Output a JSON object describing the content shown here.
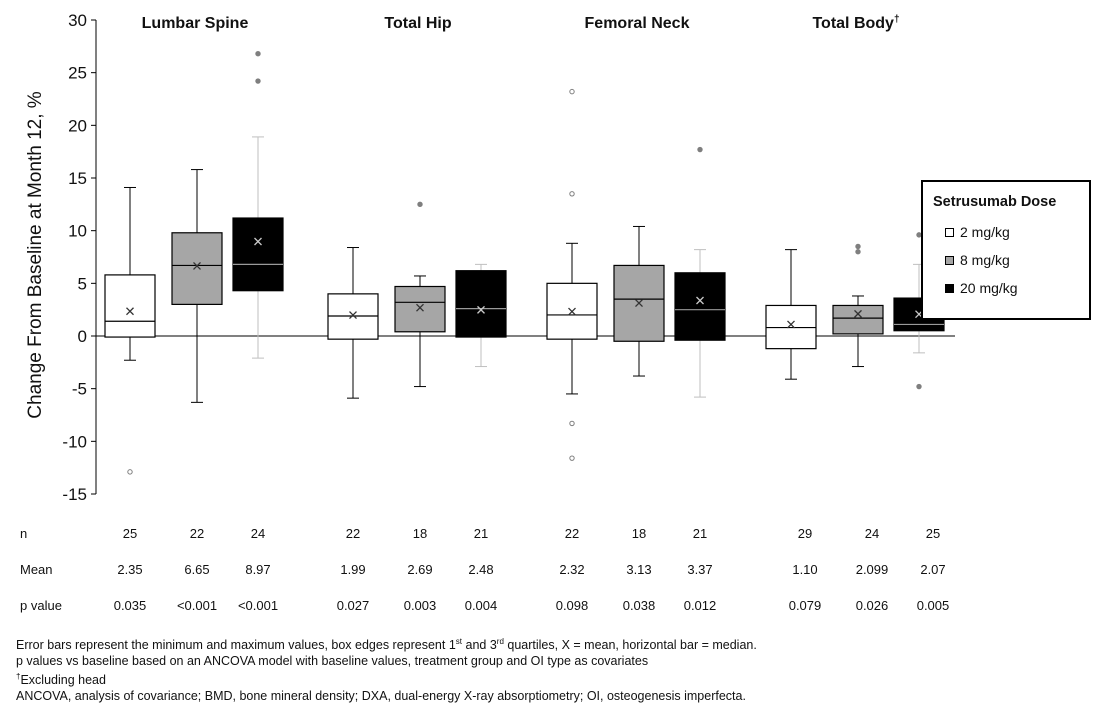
{
  "chart_data": {
    "type": "boxplot",
    "ylabel": "Change From Baseline at Month 12, %",
    "ylim": [
      -15,
      30
    ],
    "yticks": [
      -15,
      -10,
      -5,
      0,
      5,
      10,
      15,
      20,
      25,
      30
    ],
    "groups": [
      {
        "title": "Lumbar Spine",
        "title_mark": "",
        "boxes": [
          {
            "series": "2 mg/kg",
            "min": -2.3,
            "q1": -0.1,
            "median": 1.4,
            "q3": 5.8,
            "max": 14.1,
            "mean": 2.35,
            "outliers": [
              -12.9
            ]
          },
          {
            "series": "8 mg/kg",
            "min": -6.3,
            "q1": 3.0,
            "median": 6.7,
            "q3": 9.8,
            "max": 15.8,
            "mean": 6.65,
            "outliers": []
          },
          {
            "series": "20 mg/kg",
            "min": -2.1,
            "q1": 4.3,
            "median": 6.8,
            "q3": 11.2,
            "max": 18.9,
            "mean": 8.97,
            "outliers": [
              24.2,
              26.8
            ]
          }
        ]
      },
      {
        "title": "Total Hip",
        "title_mark": "",
        "boxes": [
          {
            "series": "2 mg/kg",
            "min": -5.9,
            "q1": -0.3,
            "median": 1.9,
            "q3": 4.0,
            "max": 8.4,
            "mean": 1.99,
            "outliers": []
          },
          {
            "series": "8 mg/kg",
            "min": -4.8,
            "q1": 0.4,
            "median": 3.2,
            "q3": 4.7,
            "max": 5.7,
            "mean": 2.69,
            "outliers": [
              12.5
            ]
          },
          {
            "series": "20 mg/kg",
            "min": -2.9,
            "q1": -0.1,
            "median": 2.6,
            "q3": 6.2,
            "max": 6.8,
            "mean": 2.48,
            "outliers": []
          }
        ]
      },
      {
        "title": "Femoral Neck",
        "title_mark": "",
        "boxes": [
          {
            "series": "2 mg/kg",
            "min": -5.5,
            "q1": -0.3,
            "median": 2.0,
            "q3": 5.0,
            "max": 8.8,
            "mean": 2.32,
            "outliers": [
              13.5,
              23.2,
              -8.3,
              -11.6
            ]
          },
          {
            "series": "8 mg/kg",
            "min": -3.8,
            "q1": -0.5,
            "median": 3.5,
            "q3": 6.7,
            "max": 10.4,
            "mean": 3.13,
            "outliers": []
          },
          {
            "series": "20 mg/kg",
            "min": -5.8,
            "q1": -0.4,
            "median": 2.5,
            "q3": 6.0,
            "max": 8.2,
            "mean": 3.37,
            "outliers": [
              17.7
            ]
          }
        ]
      },
      {
        "title": "Total Body",
        "title_mark": "†",
        "boxes": [
          {
            "series": "2 mg/kg",
            "min": -4.1,
            "q1": -1.2,
            "median": 0.8,
            "q3": 2.9,
            "max": 8.2,
            "mean": 1.1,
            "outliers": []
          },
          {
            "series": "8 mg/kg",
            "min": -2.9,
            "q1": 0.2,
            "median": 1.7,
            "q3": 2.9,
            "max": 3.8,
            "mean": 2.099,
            "outliers": [
              8.0,
              8.5
            ]
          },
          {
            "series": "20 mg/kg",
            "min": -1.6,
            "q1": 0.5,
            "median": 1.1,
            "q3": 3.6,
            "max": 6.8,
            "mean": 2.07,
            "outliers": [
              9.6,
              -4.8
            ]
          }
        ]
      }
    ],
    "legend": {
      "title": "Setrusumab Dose",
      "position": "right",
      "items": [
        {
          "label": "2 mg/kg",
          "color": "#ffffff"
        },
        {
          "label": "8 mg/kg",
          "color": "#a6a6a6"
        },
        {
          "label": "20 mg/kg",
          "color": "#000000"
        }
      ]
    },
    "table": {
      "rows": [
        {
          "label": "n",
          "values": [
            "25",
            "22",
            "24",
            "22",
            "18",
            "21",
            "22",
            "18",
            "21",
            "29",
            "24",
            "25"
          ]
        },
        {
          "label": "Mean",
          "values": [
            "2.35",
            "6.65",
            "8.97",
            "1.99",
            "2.69",
            "2.48",
            "2.32",
            "3.13",
            "3.37",
            "1.10",
            "2.099",
            "2.07"
          ]
        },
        {
          "label": "p value",
          "values": [
            "0.035",
            "<0.001",
            "<0.001",
            "0.027",
            "0.003",
            "0.004",
            "0.098",
            "0.038",
            "0.012",
            "0.079",
            "0.026",
            "0.005"
          ]
        }
      ]
    }
  },
  "footnotes": {
    "line1_a": "Error bars represent the minimum and maximum values, box edges represent 1",
    "line1_sup1": "st",
    "line1_b": " and 3",
    "line1_sup2": "rd",
    "line1_c": " quartiles, X = mean, horizontal bar = median.",
    "line2": "p values vs baseline based on an ANCOVA model with baseline values, treatment group and OI type as covariates",
    "line3_mark": "†",
    "line3": "Excluding head",
    "line4": "ANCOVA, analysis of covariance; BMD, bone mineral density; DXA, dual-energy X-ray absorptiometry; OI, osteogenesis imperfecta."
  },
  "colors": {
    "box_2mg": "#ffffff",
    "box_8mg": "#a6a6a6",
    "box_20mg": "#000000",
    "whisker_20mg": "#bfbfbf",
    "outlier": "#7f7f7f"
  }
}
